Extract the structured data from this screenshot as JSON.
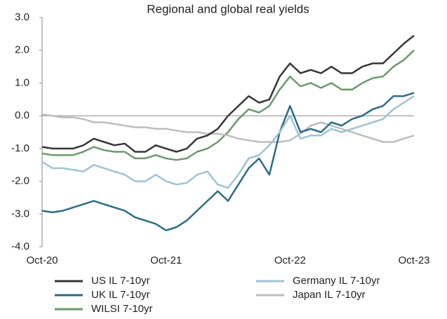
{
  "chart_data": {
    "type": "line",
    "title": "Regional and global real yields",
    "categories": [
      "Oct-20",
      null,
      null,
      null,
      null,
      null,
      null,
      null,
      null,
      null,
      null,
      null,
      "Oct-21",
      null,
      null,
      null,
      null,
      null,
      null,
      null,
      null,
      null,
      null,
      null,
      "Oct-22",
      null,
      null,
      null,
      null,
      null,
      null,
      null,
      null,
      null,
      null,
      null,
      "Oct-23"
    ],
    "series": [
      {
        "name": "US IL 7-10yr",
        "color": "#363636",
        "values": [
          -0.95,
          -1.0,
          -1.0,
          -1.0,
          -0.9,
          -0.7,
          -0.8,
          -0.9,
          -0.85,
          -1.1,
          -1.1,
          -0.9,
          -1.0,
          -1.1,
          -1.0,
          -0.7,
          -0.6,
          -0.4,
          0.0,
          0.3,
          0.6,
          0.4,
          0.5,
          1.2,
          1.6,
          1.3,
          1.4,
          1.3,
          1.5,
          1.3,
          1.3,
          1.5,
          1.6,
          1.6,
          1.9,
          2.2,
          2.45
        ]
      },
      {
        "name": "Germany IL 7-10yr",
        "color": "#9fc3d5",
        "values": [
          -1.4,
          -1.6,
          -1.6,
          -1.65,
          -1.7,
          -1.5,
          -1.6,
          -1.7,
          -1.8,
          -2.0,
          -2.0,
          -1.8,
          -2.0,
          -2.1,
          -2.05,
          -1.8,
          -1.7,
          -2.1,
          -2.2,
          -1.8,
          -1.3,
          -1.2,
          -0.9,
          -0.5,
          0.0,
          -0.7,
          -0.6,
          -0.6,
          -0.4,
          -0.5,
          -0.4,
          -0.3,
          -0.2,
          -0.1,
          0.2,
          0.4,
          0.6
        ]
      },
      {
        "name": "UK IL 7-10yr",
        "color": "#2b6c85",
        "values": [
          -2.9,
          -2.95,
          -2.9,
          -2.8,
          -2.7,
          -2.6,
          -2.7,
          -2.8,
          -2.9,
          -3.1,
          -3.2,
          -3.3,
          -3.5,
          -3.4,
          -3.2,
          -2.9,
          -2.6,
          -2.3,
          -2.6,
          -2.1,
          -1.6,
          -1.3,
          -1.8,
          -0.5,
          0.3,
          -0.5,
          -0.4,
          -0.5,
          -0.2,
          -0.3,
          -0.1,
          0.0,
          0.2,
          0.3,
          0.6,
          0.6,
          0.7
        ]
      },
      {
        "name": "Japan IL 7-10yr",
        "color": "#bdbdbd",
        "values": [
          0.05,
          0.0,
          -0.05,
          -0.05,
          -0.1,
          -0.2,
          -0.2,
          -0.25,
          -0.3,
          -0.35,
          -0.35,
          -0.4,
          -0.4,
          -0.45,
          -0.5,
          -0.5,
          -0.55,
          -0.55,
          -0.6,
          -0.7,
          -0.75,
          -0.8,
          -0.8,
          -0.8,
          -0.75,
          -0.55,
          -0.3,
          -0.2,
          -0.3,
          -0.4,
          -0.5,
          -0.6,
          -0.7,
          -0.8,
          -0.8,
          -0.7,
          -0.6
        ]
      },
      {
        "name": "WILSI 7-10yr",
        "color": "#6b9a6b",
        "values": [
          -1.15,
          -1.2,
          -1.2,
          -1.2,
          -1.1,
          -0.95,
          -1.05,
          -1.1,
          -1.1,
          -1.3,
          -1.3,
          -1.2,
          -1.3,
          -1.35,
          -1.3,
          -1.1,
          -1.0,
          -0.8,
          -0.5,
          -0.1,
          0.2,
          0.1,
          0.3,
          0.8,
          1.2,
          0.9,
          1.0,
          0.85,
          1.0,
          0.8,
          0.8,
          1.0,
          1.15,
          1.2,
          1.5,
          1.7,
          2.0
        ]
      }
    ],
    "ylim": [
      -4,
      3
    ],
    "yticks": [
      {
        "value": -4,
        "label": "-4.0"
      },
      {
        "value": -3,
        "label": "-3.0"
      },
      {
        "value": -2,
        "label": "-2.0"
      },
      {
        "value": -1,
        "label": "-1.0"
      },
      {
        "value": 0,
        "label": "0.0"
      },
      {
        "value": 1,
        "label": "1.0"
      },
      {
        "value": 2,
        "label": "2.0"
      },
      {
        "value": 3,
        "label": "3.0"
      }
    ],
    "grid": false
  }
}
